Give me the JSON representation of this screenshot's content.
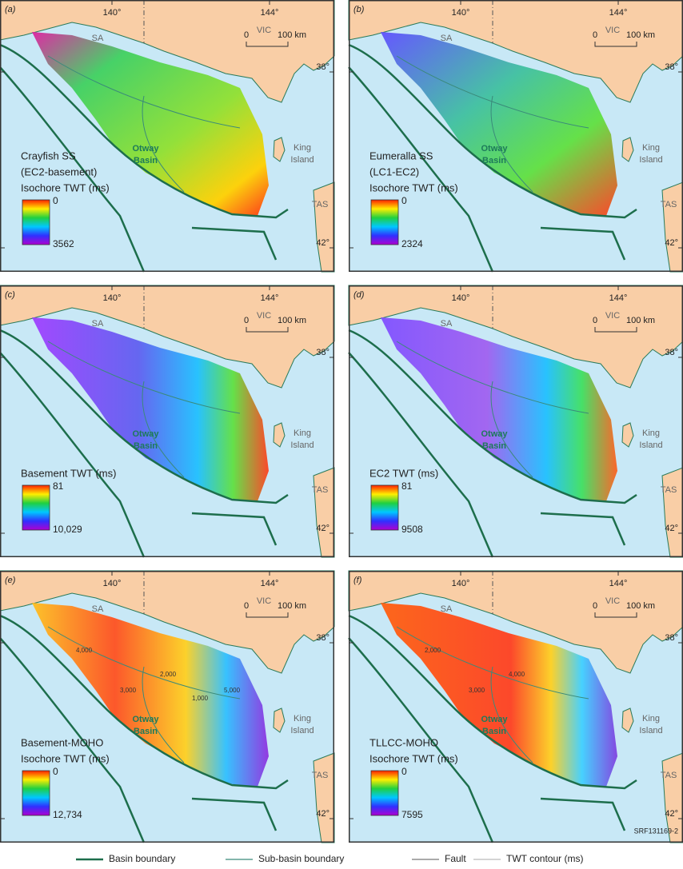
{
  "panels": [
    {
      "letter": "(a)",
      "lon": [
        "140°",
        "144°"
      ],
      "lat": [
        "38°",
        "42°"
      ],
      "states": [
        "SA",
        "VIC",
        "TAS"
      ],
      "island": [
        "King",
        "Island"
      ],
      "basin": [
        "Otway",
        "Basin"
      ],
      "scale": [
        "0",
        "100 km"
      ],
      "legend_title": [
        "Crayfish SS",
        "(EC2-basement)",
        "Isochore TWT (ms)"
      ],
      "scale_top": "0",
      "scale_bottom": "3562",
      "contours": []
    },
    {
      "letter": "(b)",
      "lon": [
        "140°",
        "144°"
      ],
      "lat": [
        "38°",
        "42°"
      ],
      "states": [
        "SA",
        "VIC",
        "TAS"
      ],
      "island": [
        "King",
        "Island"
      ],
      "basin": [
        "Otway",
        "Basin"
      ],
      "scale": [
        "0",
        "100 km"
      ],
      "legend_title": [
        "Eumeralla SS",
        "(LC1-EC2)",
        "Isochore TWT (ms)"
      ],
      "scale_top": "0",
      "scale_bottom": "2324",
      "contours": []
    },
    {
      "letter": "(c)",
      "lon": [
        "140°",
        "144°"
      ],
      "lat": [
        "38°",
        "42°"
      ],
      "states": [
        "SA",
        "VIC",
        "TAS"
      ],
      "island": [
        "King",
        "Island"
      ],
      "basin": [
        "Otway",
        "Basin"
      ],
      "scale": [
        "0",
        "100 km"
      ],
      "legend_title": [
        "Basement TWT (ms)"
      ],
      "scale_top": "81",
      "scale_bottom": "10,029",
      "contours": []
    },
    {
      "letter": "(d)",
      "lon": [
        "140°",
        "144°"
      ],
      "lat": [
        "38°",
        "42°"
      ],
      "states": [
        "SA",
        "VIC",
        "TAS"
      ],
      "island": [
        "King",
        "Island"
      ],
      "basin": [
        "Otway",
        "Basin"
      ],
      "scale": [
        "0",
        "100 km"
      ],
      "legend_title": [
        "EC2 TWT (ms)"
      ],
      "scale_top": "81",
      "scale_bottom": "9508",
      "contours": []
    },
    {
      "letter": "(e)",
      "lon": [
        "140°",
        "144°"
      ],
      "lat": [
        "38°",
        "42°"
      ],
      "states": [
        "SA",
        "VIC",
        "TAS"
      ],
      "island": [
        "King",
        "Island"
      ],
      "basin": [
        "Otway",
        "Basin"
      ],
      "scale": [
        "0",
        "100 km"
      ],
      "legend_title": [
        "Basement-MOHO",
        "Isochore TWT (ms)"
      ],
      "scale_top": "0",
      "scale_bottom": "12,734",
      "contours": [
        "4,000",
        "3,000",
        "2,000",
        "1,000",
        "5,000"
      ]
    },
    {
      "letter": "(f)",
      "lon": [
        "140°",
        "144°"
      ],
      "lat": [
        "38°",
        "42°"
      ],
      "states": [
        "SA",
        "VIC",
        "TAS"
      ],
      "island": [
        "King",
        "Island"
      ],
      "basin": [
        "Otway",
        "Basin"
      ],
      "scale": [
        "0",
        "100 km"
      ],
      "legend_title": [
        "TLLCC-MOHO",
        "Isochore TWT (ms)"
      ],
      "scale_top": "0",
      "scale_bottom": "7595",
      "contours": [
        "2,000",
        "3,000",
        "4,000"
      ]
    }
  ],
  "code": "SRF131169-2",
  "legend": [
    "Basin boundary",
    "Sub-basin boundary",
    "Fault",
    "TWT contour (ms)"
  ]
}
